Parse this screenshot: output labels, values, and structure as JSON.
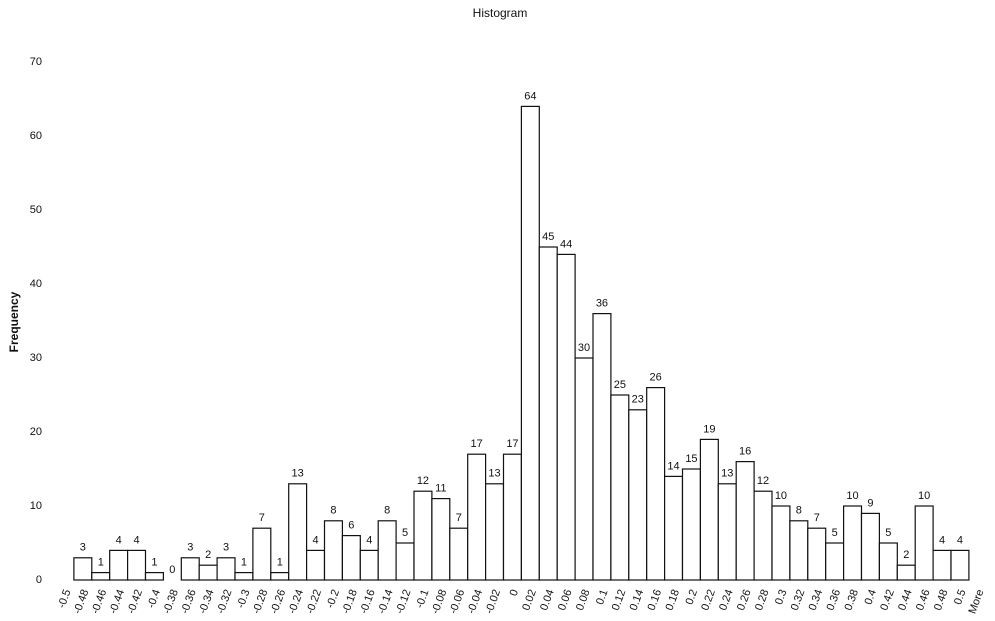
{
  "chart_data": {
    "type": "histogram",
    "title": "Histogram",
    "y_label": "Frequency",
    "categories": [
      "-0.5",
      "-0.48",
      "-0.46",
      "-0.44",
      "-0.42",
      "-0.4",
      "-0.38",
      "-0.36",
      "-0.34",
      "-0.32",
      "-0.3",
      "-0.28",
      "-0.26",
      "-0.24",
      "-0.22",
      "-0.2",
      "-0.18",
      "-0.16",
      "-0.14",
      "-0.12",
      "-0.1",
      "-0.08",
      "-0.06",
      "-0.04",
      "-0.02",
      "0",
      "0.02",
      "0.04",
      "0.06",
      "0.08",
      "0.1",
      "0.12",
      "0.14",
      "0.16",
      "0.18",
      "0.2",
      "0.22",
      "0.24",
      "0.26",
      "0.28",
      "0.3",
      "0.32",
      "0.34",
      "0.36",
      "0.38",
      "0.4",
      "0.42",
      "0.44",
      "0.46",
      "0.48",
      "0.5",
      "More"
    ],
    "values": [
      null,
      3,
      1,
      4,
      4,
      1,
      0,
      3,
      2,
      3,
      1,
      7,
      1,
      13,
      4,
      8,
      6,
      4,
      8,
      5,
      12,
      11,
      7,
      17,
      13,
      17,
      64,
      45,
      44,
      30,
      36,
      25,
      23,
      26,
      14,
      15,
      19,
      13,
      16,
      12,
      10,
      8,
      7,
      5,
      10,
      9,
      5,
      2,
      10,
      4,
      4,
      null
    ],
    "color": "#ffffff",
    "ylim": [
      0,
      70
    ],
    "yticks": [
      0,
      10,
      20,
      30,
      40,
      50,
      60,
      70
    ],
    "grid": false
  }
}
